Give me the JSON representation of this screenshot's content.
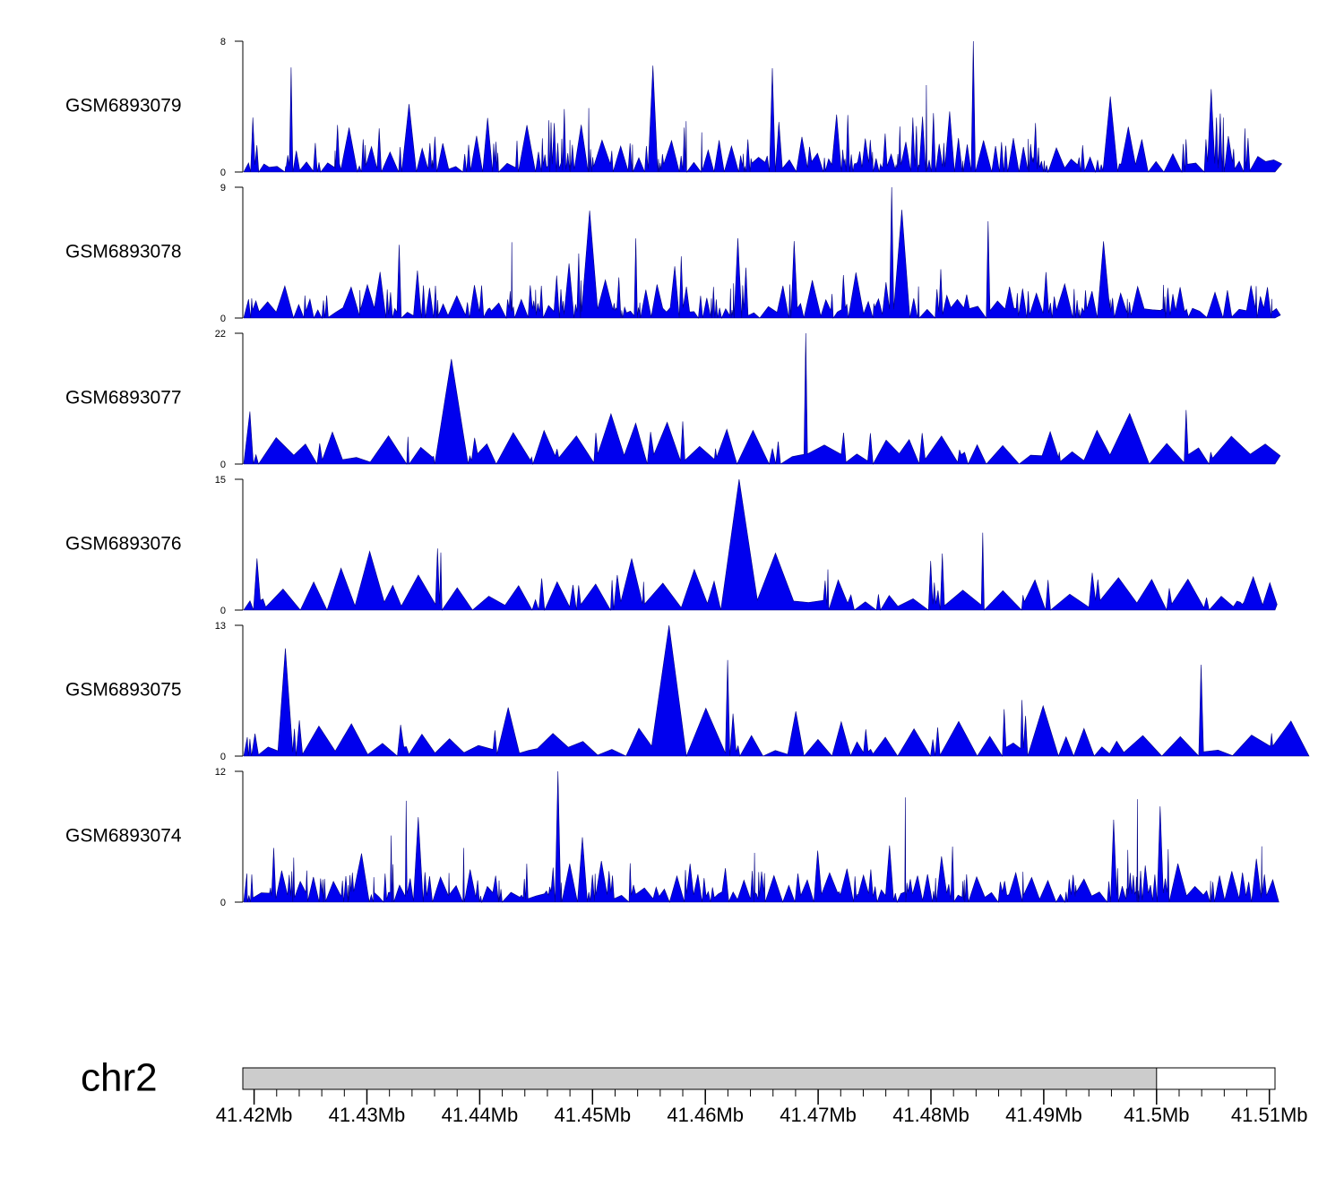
{
  "chart_data": {
    "type": "area",
    "tracks": [
      {
        "name": "GSM6893079",
        "ymax": 8,
        "ymin": 0,
        "seed": 7901
      },
      {
        "name": "GSM6893078",
        "ymax": 9,
        "ymin": 0,
        "seed": 7802
      },
      {
        "name": "GSM6893077",
        "ymax": 22,
        "ymin": 0,
        "seed": 7703
      },
      {
        "name": "GSM6893076",
        "ymax": 15,
        "ymin": 0,
        "seed": 7604
      },
      {
        "name": "GSM6893075",
        "ymax": 13,
        "ymin": 0,
        "seed": 7505
      },
      {
        "name": "GSM6893074",
        "ymax": 12,
        "ymin": 0,
        "seed": 7406
      }
    ],
    "region": {
      "start": 41.419,
      "end": 41.5105,
      "unit": "Mb"
    },
    "chromosome": {
      "label": "chr2",
      "shaded_end": 41.5
    },
    "axis": {
      "ticks": [
        41.42,
        41.43,
        41.44,
        41.45,
        41.46,
        41.47,
        41.48,
        41.49,
        41.5,
        41.51
      ],
      "tick_labels": [
        "41.42Mb",
        "41.43Mb",
        "41.44Mb",
        "41.45Mb",
        "41.46Mb",
        "41.47Mb",
        "41.48Mb",
        "41.49Mb",
        "41.5Mb",
        "41.51Mb"
      ],
      "minor_step": 0.002
    },
    "colors": {
      "fill": "#0000ee",
      "stroke": "#000080",
      "axis": "#000000",
      "ideogram": "#cccccc"
    }
  }
}
